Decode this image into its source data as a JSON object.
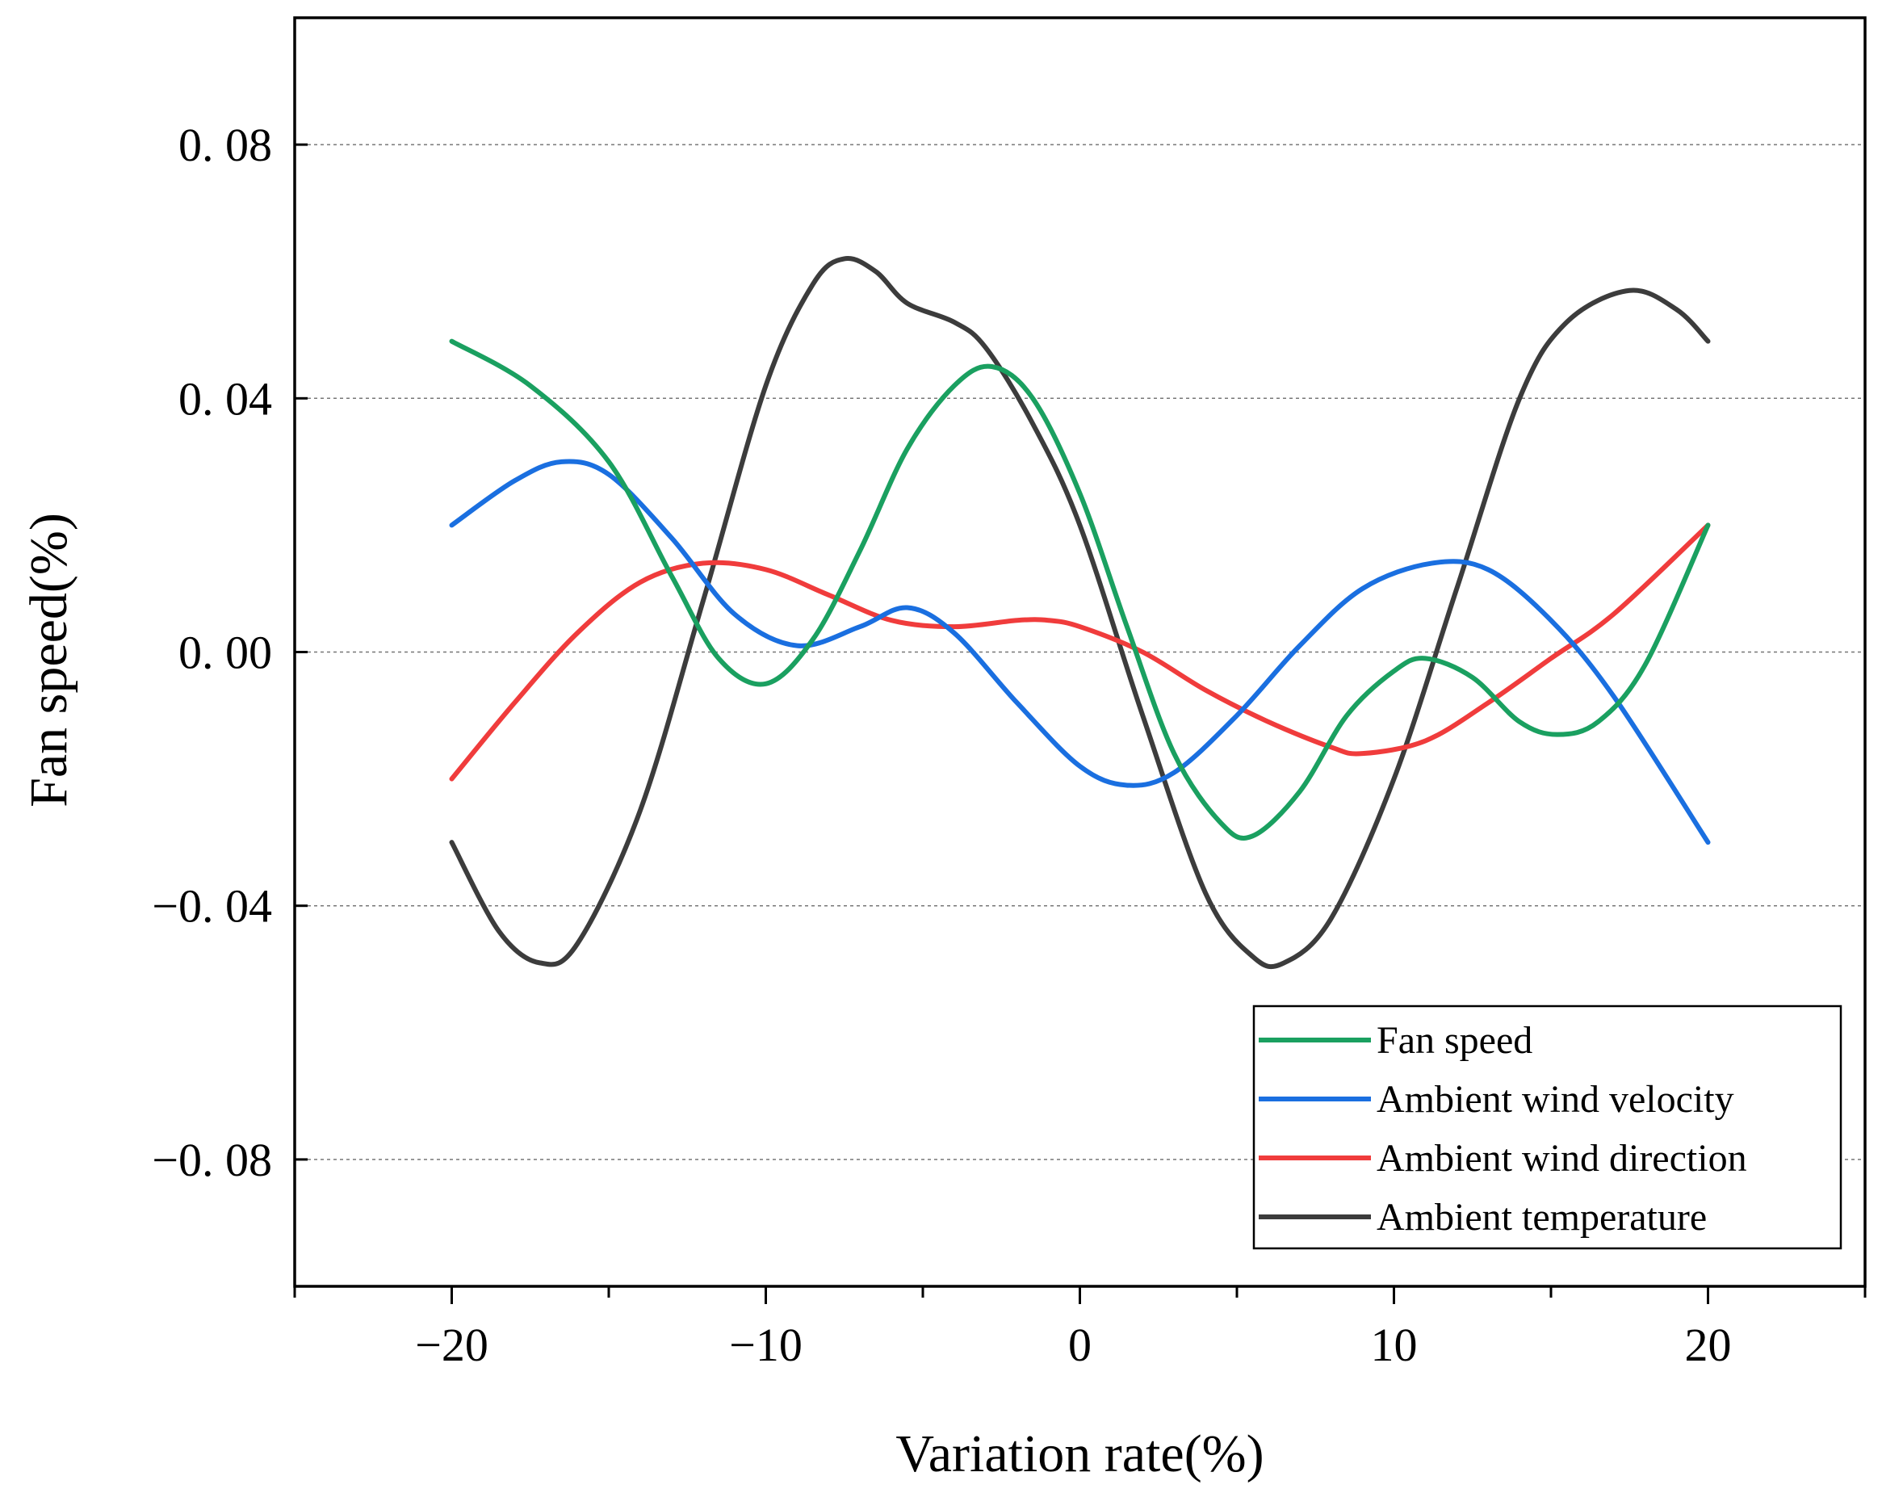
{
  "chart_data": {
    "type": "line",
    "title": "",
    "xlabel": "Variation rate(%)",
    "ylabel": "Fan speed(%)",
    "xlim": [
      -25,
      25
    ],
    "ylim": [
      -0.1,
      0.1
    ],
    "x_ticks": [
      -20,
      -10,
      0,
      10,
      20
    ],
    "x_tick_labels": [
      "−20",
      "−10",
      "0",
      "10",
      "20"
    ],
    "y_ticks": [
      0.08,
      0.04,
      0.0,
      -0.04,
      -0.08
    ],
    "y_tick_labels": [
      "0. 08",
      "0. 04",
      "0. 00",
      "−0. 04",
      "−0. 08"
    ],
    "grid": "horizontal dashed",
    "legend_position": "bottom-right",
    "series": [
      {
        "name": "Fan speed",
        "color": "#1aa060",
        "x": [
          -20,
          -17.5,
          -15,
          -13,
          -11.5,
          -10,
          -8.5,
          -7,
          -5.5,
          -4,
          -2.8,
          -1.5,
          0,
          1.5,
          3,
          4.5,
          5.5,
          7,
          8.5,
          10,
          11,
          12.5,
          14,
          15.2,
          16.5,
          18,
          20
        ],
        "y": [
          0.049,
          0.042,
          0.03,
          0.012,
          -0.001,
          -0.005,
          0.002,
          0.016,
          0.032,
          0.042,
          0.045,
          0.04,
          0.025,
          0.004,
          -0.016,
          -0.027,
          -0.029,
          -0.022,
          -0.01,
          -0.003,
          -0.001,
          -0.004,
          -0.011,
          -0.013,
          -0.011,
          -0.002,
          0.02
        ]
      },
      {
        "name": "Ambient wind velocity",
        "color": "#1a6fe0",
        "x": [
          -20,
          -18,
          -16.5,
          -15,
          -13,
          -11,
          -9,
          -7,
          -5.5,
          -4,
          -2,
          0,
          1.5,
          3,
          5,
          7,
          9,
          11.2,
          13,
          15,
          17,
          20
        ],
        "y": [
          0.02,
          0.027,
          0.03,
          0.028,
          0.018,
          0.006,
          0.001,
          0.004,
          0.007,
          0.003,
          -0.008,
          -0.018,
          -0.021,
          -0.019,
          -0.01,
          0.001,
          0.01,
          0.014,
          0.013,
          0.005,
          -0.007,
          -0.03
        ]
      },
      {
        "name": "Ambient wind direction",
        "color": "#f03c3c",
        "x": [
          -20,
          -18,
          -16,
          -14,
          -12,
          -10,
          -8,
          -6,
          -4,
          -2,
          -1,
          0,
          2,
          4,
          6,
          8,
          9,
          11,
          13,
          15,
          17,
          20
        ],
        "y": [
          -0.02,
          -0.008,
          0.003,
          0.011,
          0.014,
          0.013,
          0.009,
          0.005,
          0.004,
          0.005,
          0.005,
          0.004,
          0.0,
          -0.006,
          -0.011,
          -0.015,
          -0.016,
          -0.014,
          -0.008,
          -0.001,
          0.006,
          0.02
        ]
      },
      {
        "name": "Ambient temperature",
        "color": "#3c3c3c",
        "x": [
          -20,
          -18.5,
          -17.2,
          -16,
          -14,
          -12,
          -10,
          -8.5,
          -7.5,
          -6.5,
          -5.5,
          -4,
          -3,
          -1.5,
          0,
          2,
          4,
          5.5,
          6.5,
          8,
          10,
          12,
          14,
          15.5,
          17.5,
          19,
          20
        ],
        "y": [
          -0.03,
          -0.044,
          -0.049,
          -0.046,
          -0.025,
          0.008,
          0.042,
          0.058,
          0.062,
          0.06,
          0.055,
          0.052,
          0.048,
          0.036,
          0.02,
          -0.01,
          -0.038,
          -0.048,
          -0.049,
          -0.042,
          -0.02,
          0.01,
          0.04,
          0.052,
          0.057,
          0.054,
          0.049
        ]
      }
    ]
  }
}
